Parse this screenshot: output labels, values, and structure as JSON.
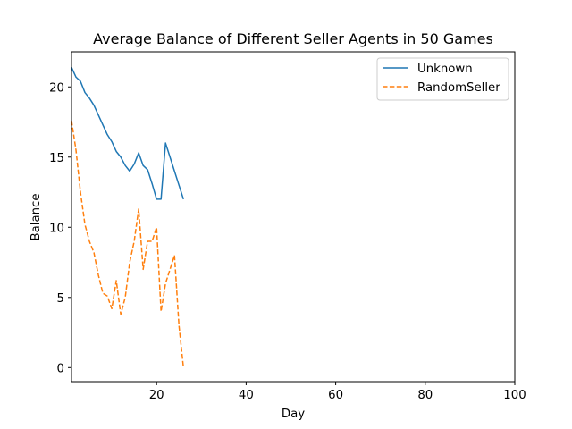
{
  "chart_data": {
    "type": "line",
    "title": "Average Balance of Different Seller Agents in 50 Games",
    "xlabel": "Day",
    "ylabel": "Balance",
    "xlim": [
      1,
      100
    ],
    "ylim": [
      -1.0,
      22.5
    ],
    "xticks": [
      20,
      40,
      60,
      80,
      100
    ],
    "yticks": [
      0,
      5,
      10,
      15,
      20
    ],
    "grid": false,
    "legend_position": "top-right",
    "series": [
      {
        "name": "Unknown",
        "color": "#1f77b4",
        "style": "solid",
        "x": [
          1,
          2,
          3,
          4,
          5,
          6,
          7,
          8,
          9,
          10,
          11,
          12,
          13,
          14,
          15,
          16,
          17,
          18,
          19,
          20,
          21,
          22,
          23,
          24,
          25,
          26
        ],
        "y": [
          21.4,
          20.7,
          20.4,
          19.6,
          19.2,
          18.7,
          18.0,
          17.3,
          16.6,
          16.1,
          15.4,
          15.0,
          14.4,
          14.0,
          14.5,
          15.3,
          14.4,
          14.1,
          13.1,
          12.0,
          12.0,
          16.0,
          15.0,
          14.0,
          13.0,
          12.0
        ]
      },
      {
        "name": "RandomSeller",
        "color": "#ff7f0e",
        "style": "dashed",
        "x": [
          1,
          2,
          3,
          4,
          5,
          6,
          7,
          8,
          9,
          10,
          11,
          12,
          13,
          14,
          15,
          16,
          17,
          18,
          19,
          20,
          21,
          22,
          23,
          24,
          25,
          26
        ],
        "y": [
          17.6,
          15.5,
          12.5,
          10.2,
          9.0,
          8.2,
          6.6,
          5.3,
          5.1,
          4.2,
          6.2,
          3.8,
          5.0,
          7.5,
          9.0,
          11.3,
          7.0,
          9.0,
          9.0,
          10.0,
          4.0,
          6.0,
          7.0,
          8.0,
          3.0,
          0.0
        ]
      }
    ]
  }
}
